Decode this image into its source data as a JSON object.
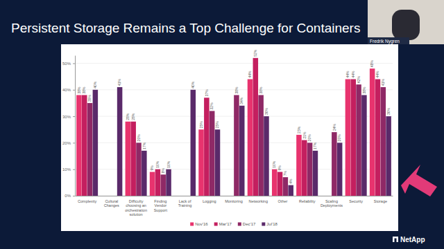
{
  "chart_data": {
    "type": "bar",
    "title": "Persistent Storage Remains a Top Challenge for Containers",
    "annotations": [
      "Fredrik Nygren",
      "NetApp"
    ],
    "categories": [
      "Complexity",
      "Cultural Changes",
      "Difficulty choosing an orchestration solution",
      "Finding Vendor Support",
      "Lack of Training",
      "Logging",
      "Monitoring",
      "Networking",
      "Other",
      "Reliability",
      "Scaling Deployments",
      "Security",
      "Storage"
    ],
    "series": [
      {
        "name": "Nov'16",
        "color": "#e8336e",
        "values": [
          38,
          null,
          28,
          9,
          null,
          25,
          null,
          44,
          10,
          23,
          null,
          44,
          48
        ],
        "value_labels": [
          "38%",
          null,
          "28%",
          "9%",
          null,
          "25%",
          null,
          "44%",
          "10%",
          "23%",
          null,
          "44%",
          "48%"
        ]
      },
      {
        "name": "Mar'17",
        "color": "#c41f5f",
        "values": [
          38,
          null,
          28,
          10,
          null,
          37,
          null,
          52,
          9,
          21,
          null,
          44,
          44
        ],
        "value_labels": [
          "38%",
          null,
          "28%",
          "10%",
          null,
          "37%",
          null,
          "52%",
          "9%",
          "21%",
          null,
          "44%",
          "44%"
        ]
      },
      {
        "name": "Dec'17",
        "color": "#8f2966",
        "values": [
          35,
          null,
          20,
          8,
          null,
          32,
          38,
          38,
          7,
          20,
          24,
          42,
          41
        ],
        "value_labels": [
          "35%",
          null,
          "20%",
          "8%",
          null,
          "32%",
          "38%",
          "38%",
          "7%",
          "20%",
          "24%",
          "42%",
          "41%"
        ]
      },
      {
        "name": "Jul'18",
        "color": "#5a2a6a",
        "values": [
          40,
          41,
          17,
          10,
          40,
          25,
          34,
          30,
          4,
          17,
          20,
          38,
          30
        ],
        "value_labels": [
          "40%",
          "41%",
          "17%",
          "10%",
          "40%",
          "25%",
          "34%",
          "30%",
          "4%",
          "17%",
          "20%",
          "38%",
          "30%"
        ]
      }
    ],
    "ylim": [
      0,
      53
    ],
    "yticks": [
      {
        "value": 0,
        "label": "0%"
      },
      {
        "value": 10,
        "label": "10%"
      },
      {
        "value": 20,
        "label": "20%"
      },
      {
        "value": 30,
        "label": "30%"
      },
      {
        "value": 40,
        "label": "40%"
      },
      {
        "value": 50,
        "label": "50%"
      }
    ],
    "grid": true,
    "legend": "bottom",
    "data_labels": true
  }
}
